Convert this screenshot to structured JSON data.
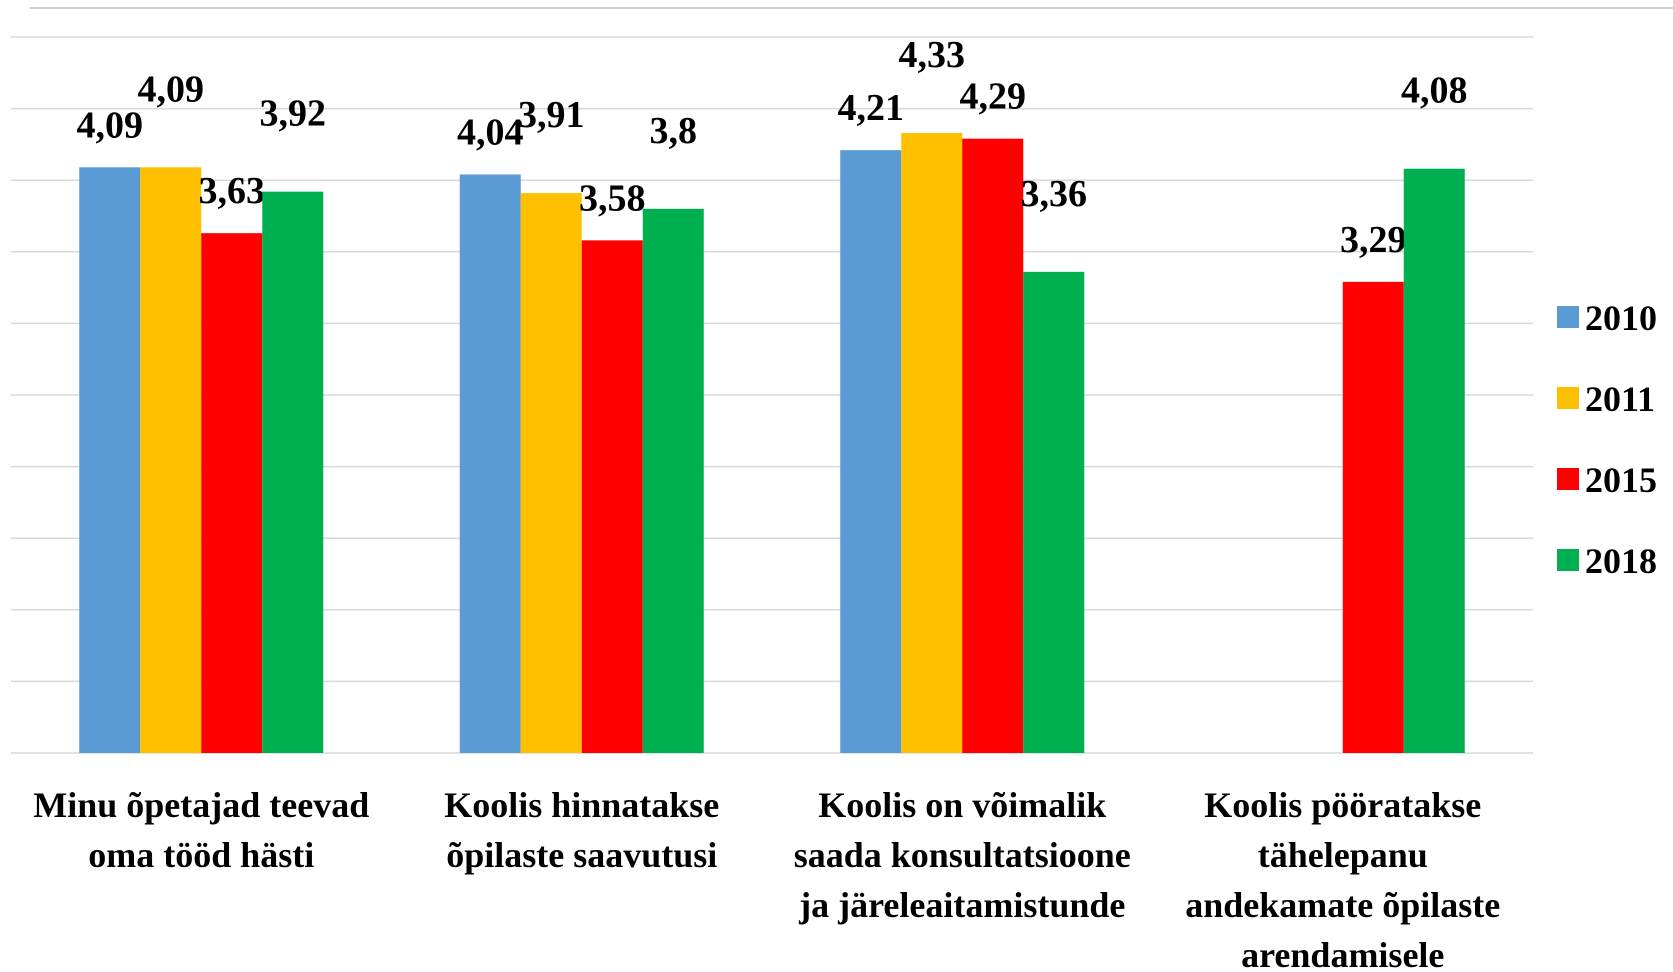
{
  "chart_data": {
    "type": "bar",
    "categories": [
      "Minu õpetajad teevad oma tööd hästi",
      "Koolis hinnatakse õpilaste saavutusi",
      "Koolis on võimalik saada konsultatsioone ja järeleaitamistunde",
      "Koolis pööratakse tähelepanu andekamate õpilaste arendamisele"
    ],
    "series": [
      {
        "name": "2010",
        "color": "#5b9bd5",
        "values": [
          4.09,
          4.04,
          4.21,
          null
        ],
        "value_labels": [
          "4,09",
          "4,04",
          "4,21",
          null
        ]
      },
      {
        "name": "2011",
        "color": "#ffc000",
        "values": [
          4.09,
          3.91,
          4.33,
          null
        ],
        "value_labels": [
          "4,09",
          "3,91",
          "4,33",
          null
        ]
      },
      {
        "name": "2015",
        "color": "#ff0000",
        "values": [
          3.63,
          3.58,
          4.29,
          3.29
        ],
        "value_labels": [
          "3,63",
          "3,58",
          "4,29",
          "3,29"
        ]
      },
      {
        "name": "2018",
        "color": "#00b050",
        "values": [
          3.92,
          3.8,
          3.36,
          4.08
        ],
        "value_labels": [
          "3,92",
          "3,8",
          "3,36",
          "4,08"
        ]
      }
    ],
    "ylim": [
      0,
      5
    ],
    "yticks": [
      0,
      0.5,
      1,
      1.5,
      2,
      2.5,
      3,
      3.5,
      4,
      4.5,
      5
    ],
    "grid": true,
    "legend": "right"
  }
}
